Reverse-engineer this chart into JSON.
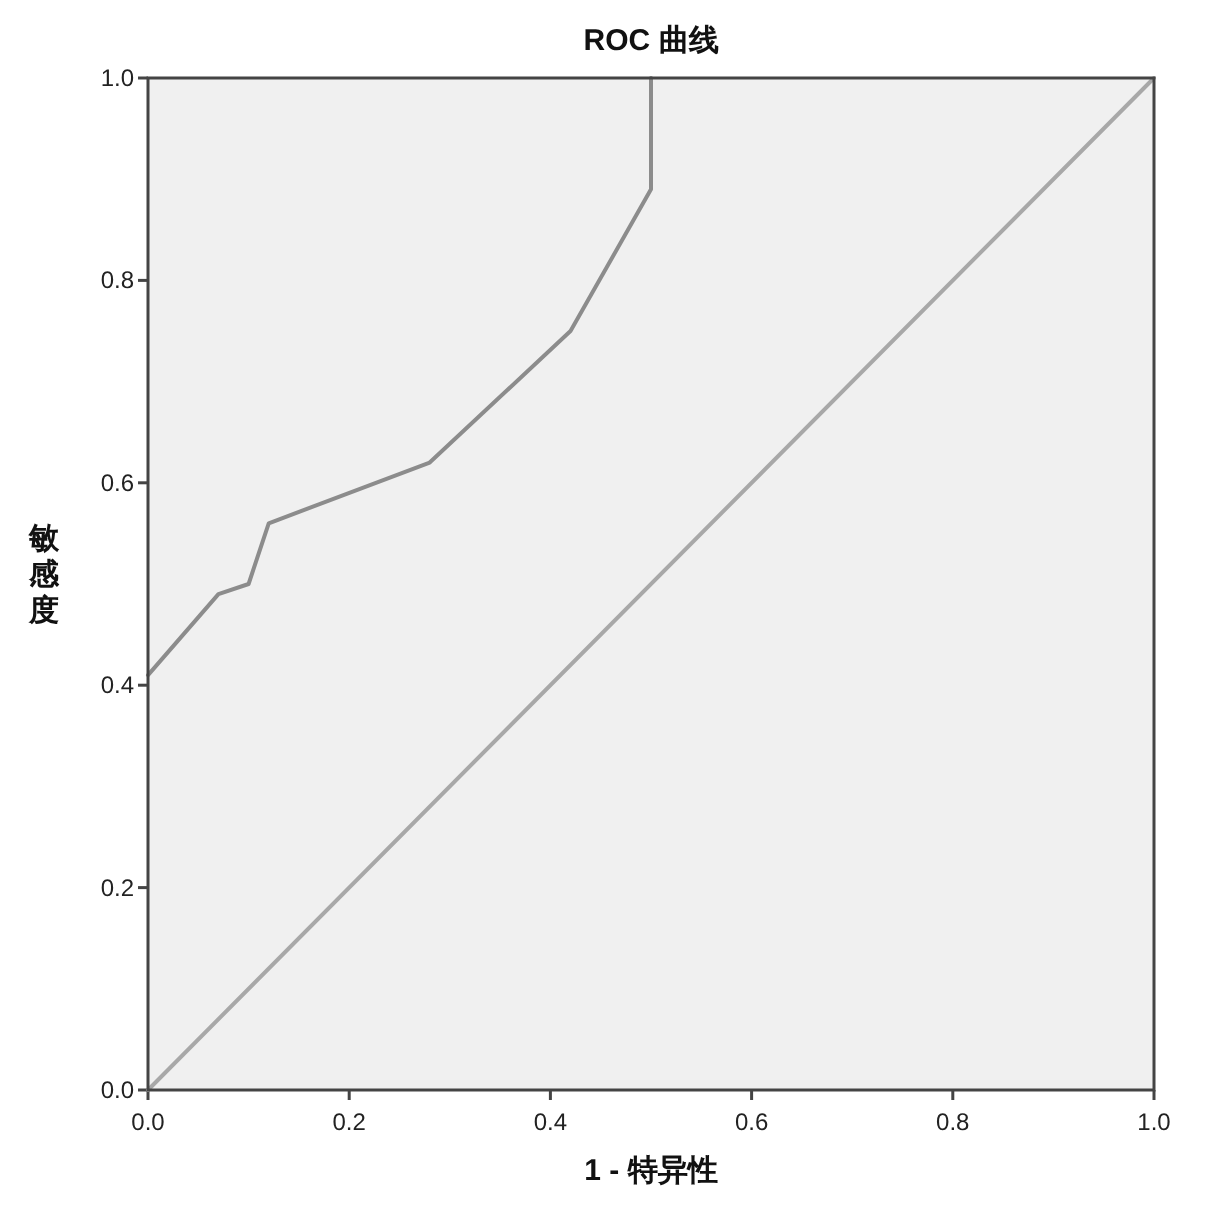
{
  "chart_data": {
    "type": "line",
    "title": "ROC 曲线",
    "xlabel": "1 - 特异性",
    "ylabel": "敏感度",
    "series": [
      {
        "x": [
          0,
          0.07,
          0.1,
          0.12,
          0.28,
          0.42,
          0.5,
          0.5
        ],
        "values": [
          0.41,
          0.49,
          0.5,
          0.56,
          0.62,
          0.75,
          0.89,
          1.0
        ],
        "color": "#8c8c8c"
      },
      {
        "x": [
          0,
          1
        ],
        "values": [
          0,
          1
        ],
        "color": "#a8a8a8"
      }
    ],
    "xlim": [
      0,
      1
    ],
    "ylim": [
      0,
      1
    ],
    "xticks": [
      {
        "value": 0,
        "label": "0.0"
      },
      {
        "value": 0.2,
        "label": "0.2"
      },
      {
        "value": 0.4,
        "label": "0.4"
      },
      {
        "value": 0.6,
        "label": "0.6"
      },
      {
        "value": 0.8,
        "label": "0.8"
      },
      {
        "value": 1,
        "label": "1.0"
      }
    ],
    "yticks": [
      {
        "value": 0,
        "label": "0.0"
      },
      {
        "value": 0.2,
        "label": "0.2"
      },
      {
        "value": 0.4,
        "label": "0.4"
      },
      {
        "value": 0.6,
        "label": "0.6"
      },
      {
        "value": 0.8,
        "label": "0.8"
      },
      {
        "value": 1,
        "label": "1.0"
      }
    ],
    "grid": false,
    "marker": "none",
    "line_style": "solid"
  }
}
